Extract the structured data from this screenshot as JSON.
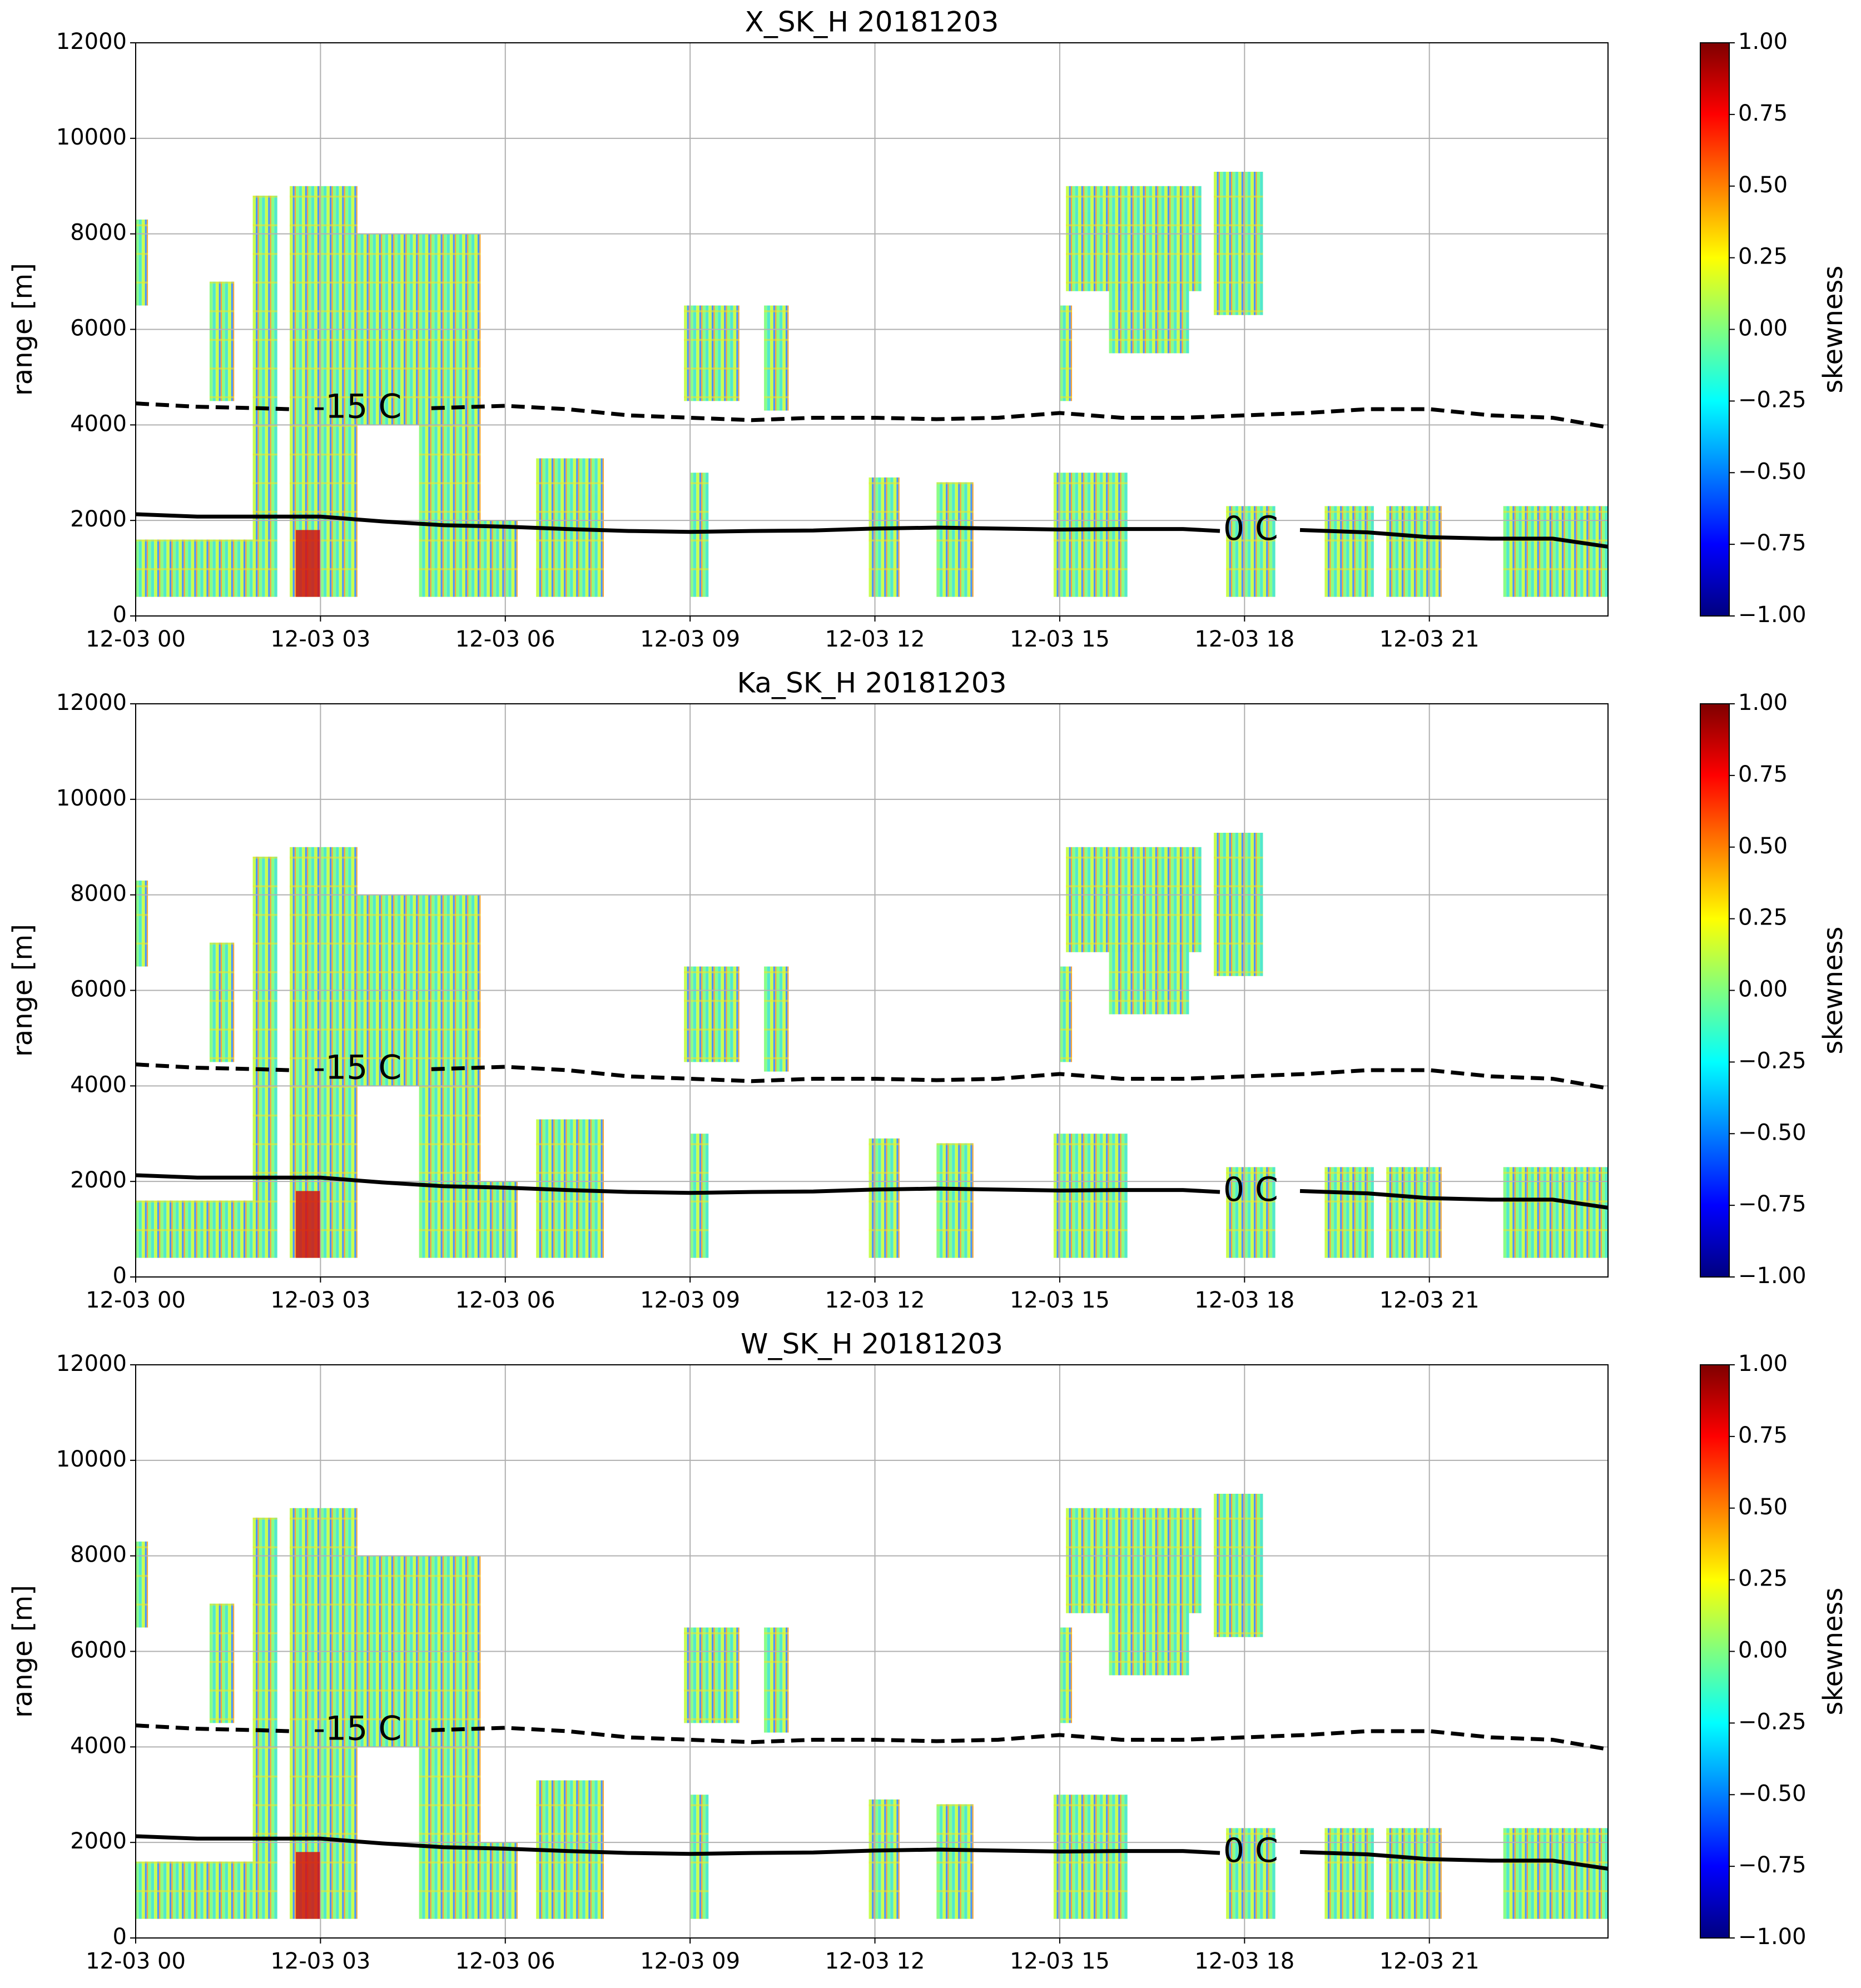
{
  "chart_data": [
    {
      "type": "heatmap",
      "title": "X_SK_H 20181203",
      "ylabel": "range [m]",
      "xlim": [
        0,
        23.9
      ],
      "xticks": [
        {
          "value": 0,
          "label": "12-03 00"
        },
        {
          "value": 3,
          "label": "12-03 03"
        },
        {
          "value": 6,
          "label": "12-03 06"
        },
        {
          "value": 9,
          "label": "12-03 09"
        },
        {
          "value": 12,
          "label": "12-03 12"
        },
        {
          "value": 15,
          "label": "12-03 15"
        },
        {
          "value": 18,
          "label": "12-03 18"
        },
        {
          "value": 21,
          "label": "12-03 21"
        }
      ],
      "ylim": [
        0,
        12000
      ],
      "yticks": [
        0,
        2000,
        4000,
        6000,
        8000,
        10000,
        12000
      ],
      "grid": true,
      "colorbar": {
        "label": "skewness",
        "colormap": "jet",
        "lim": [
          -1,
          1
        ],
        "ticks": [
          {
            "value": 1,
            "label": "1.00"
          },
          {
            "value": 0.75,
            "label": "0.75"
          },
          {
            "value": 0.5,
            "label": "0.50"
          },
          {
            "value": 0.25,
            "label": "0.25"
          },
          {
            "value": 0,
            "label": "0.00"
          },
          {
            "value": -0.25,
            "label": "−0.25"
          },
          {
            "value": -0.5,
            "label": "−0.50"
          },
          {
            "value": -0.75,
            "label": "−0.75"
          },
          {
            "value": -1,
            "label": "−1.00"
          }
        ]
      },
      "series": [
        {
          "name": "-15 C",
          "color": "#000000",
          "dashed": true,
          "x": [
            0,
            1,
            2,
            2.5,
            3.6,
            4.8,
            6,
            7,
            8,
            9,
            10,
            11,
            12,
            13,
            14,
            15,
            16,
            17,
            18,
            19,
            20,
            21,
            22,
            23,
            23.9
          ],
          "values": [
            4450,
            4380,
            4350,
            4330,
            null,
            4350,
            4400,
            4330,
            4200,
            4150,
            4100,
            4150,
            4150,
            4120,
            4150,
            4250,
            4150,
            4150,
            4200,
            4250,
            4330,
            4330,
            4200,
            4150,
            3950
          ]
        },
        {
          "name": "0 C",
          "color": "#000000",
          "dashed": false,
          "x": [
            0,
            1,
            2,
            3,
            4,
            5,
            6,
            7,
            8,
            9,
            10,
            11,
            12,
            13,
            14,
            15,
            16,
            17,
            17.6,
            18.1,
            18.9,
            20,
            21,
            22,
            23,
            23.9
          ],
          "values": [
            2130,
            2080,
            2080,
            2080,
            1980,
            1900,
            1870,
            1820,
            1780,
            1760,
            1780,
            1790,
            1830,
            1850,
            1830,
            1810,
            1820,
            1820,
            1780,
            null,
            1800,
            1750,
            1650,
            1620,
            1620,
            1450
          ]
        }
      ]
    },
    {
      "type": "heatmap",
      "title": "Ka_SK_H 20181203",
      "ylabel": "range [m]",
      "xlim": [
        0,
        23.9
      ],
      "xticks": [
        {
          "value": 0,
          "label": "12-03 00"
        },
        {
          "value": 3,
          "label": "12-03 03"
        },
        {
          "value": 6,
          "label": "12-03 06"
        },
        {
          "value": 9,
          "label": "12-03 09"
        },
        {
          "value": 12,
          "label": "12-03 12"
        },
        {
          "value": 15,
          "label": "12-03 15"
        },
        {
          "value": 18,
          "label": "12-03 18"
        },
        {
          "value": 21,
          "label": "12-03 21"
        }
      ],
      "ylim": [
        0,
        12000
      ],
      "yticks": [
        0,
        2000,
        4000,
        6000,
        8000,
        10000,
        12000
      ],
      "grid": true,
      "colorbar": {
        "label": "skewness",
        "colormap": "jet",
        "lim": [
          -1,
          1
        ],
        "ticks": [
          {
            "value": 1,
            "label": "1.00"
          },
          {
            "value": 0.75,
            "label": "0.75"
          },
          {
            "value": 0.5,
            "label": "0.50"
          },
          {
            "value": 0.25,
            "label": "0.25"
          },
          {
            "value": 0,
            "label": "0.00"
          },
          {
            "value": -0.25,
            "label": "−0.25"
          },
          {
            "value": -0.5,
            "label": "−0.50"
          },
          {
            "value": -0.75,
            "label": "−0.75"
          },
          {
            "value": -1,
            "label": "−1.00"
          }
        ]
      },
      "series": [
        {
          "name": "-15 C",
          "color": "#000000",
          "dashed": true,
          "x": [
            0,
            1,
            2,
            2.5,
            3.6,
            4.8,
            6,
            7,
            8,
            9,
            10,
            11,
            12,
            13,
            14,
            15,
            16,
            17,
            18,
            19,
            20,
            21,
            22,
            23,
            23.9
          ],
          "values": [
            4450,
            4380,
            4350,
            4330,
            null,
            4350,
            4400,
            4330,
            4200,
            4150,
            4100,
            4150,
            4150,
            4120,
            4150,
            4250,
            4150,
            4150,
            4200,
            4250,
            4330,
            4330,
            4200,
            4150,
            3950
          ]
        },
        {
          "name": "0 C",
          "color": "#000000",
          "dashed": false,
          "x": [
            0,
            1,
            2,
            3,
            4,
            5,
            6,
            7,
            8,
            9,
            10,
            11,
            12,
            13,
            14,
            15,
            16,
            17,
            17.6,
            18.1,
            18.9,
            20,
            21,
            22,
            23,
            23.9
          ],
          "values": [
            2130,
            2080,
            2080,
            2080,
            1980,
            1900,
            1870,
            1820,
            1780,
            1760,
            1780,
            1790,
            1830,
            1850,
            1830,
            1810,
            1820,
            1820,
            1780,
            null,
            1800,
            1750,
            1650,
            1620,
            1620,
            1450
          ]
        }
      ]
    },
    {
      "type": "heatmap",
      "title": "W_SK_H 20181203",
      "ylabel": "range [m]",
      "xlim": [
        0,
        23.9
      ],
      "xticks": [
        {
          "value": 0,
          "label": "12-03 00"
        },
        {
          "value": 3,
          "label": "12-03 03"
        },
        {
          "value": 6,
          "label": "12-03 06"
        },
        {
          "value": 9,
          "label": "12-03 09"
        },
        {
          "value": 12,
          "label": "12-03 12"
        },
        {
          "value": 15,
          "label": "12-03 15"
        },
        {
          "value": 18,
          "label": "12-03 18"
        },
        {
          "value": 21,
          "label": "12-03 21"
        }
      ],
      "ylim": [
        0,
        12000
      ],
      "yticks": [
        0,
        2000,
        4000,
        6000,
        8000,
        10000,
        12000
      ],
      "grid": true,
      "colorbar": {
        "label": "skewness",
        "colormap": "jet",
        "lim": [
          -1,
          1
        ],
        "ticks": [
          {
            "value": 1,
            "label": "1.00"
          },
          {
            "value": 0.75,
            "label": "0.75"
          },
          {
            "value": 0.5,
            "label": "0.50"
          },
          {
            "value": 0.25,
            "label": "0.25"
          },
          {
            "value": 0,
            "label": "0.00"
          },
          {
            "value": -0.25,
            "label": "−0.25"
          },
          {
            "value": -0.5,
            "label": "−0.50"
          },
          {
            "value": -0.75,
            "label": "−0.75"
          },
          {
            "value": -1,
            "label": "−1.00"
          }
        ]
      },
      "series": [
        {
          "name": "-15 C",
          "color": "#000000",
          "dashed": true,
          "x": [
            0,
            1,
            2,
            2.5,
            3.6,
            4.8,
            6,
            7,
            8,
            9,
            10,
            11,
            12,
            13,
            14,
            15,
            16,
            17,
            18,
            19,
            20,
            21,
            22,
            23,
            23.9
          ],
          "values": [
            4450,
            4380,
            4350,
            4330,
            null,
            4350,
            4400,
            4330,
            4200,
            4150,
            4100,
            4150,
            4150,
            4120,
            4150,
            4250,
            4150,
            4150,
            4200,
            4250,
            4330,
            4330,
            4200,
            4150,
            3950
          ]
        },
        {
          "name": "0 C",
          "color": "#000000",
          "dashed": false,
          "x": [
            0,
            1,
            2,
            3,
            4,
            5,
            6,
            7,
            8,
            9,
            10,
            11,
            12,
            13,
            14,
            15,
            16,
            17,
            17.6,
            18.1,
            18.9,
            20,
            21,
            22,
            23,
            23.9
          ],
          "values": [
            2130,
            2080,
            2080,
            2080,
            1980,
            1900,
            1870,
            1820,
            1780,
            1760,
            1780,
            1790,
            1830,
            1850,
            1830,
            1810,
            1820,
            1820,
            1780,
            null,
            1800,
            1750,
            1650,
            1620,
            1620,
            1450
          ]
        }
      ]
    }
  ]
}
